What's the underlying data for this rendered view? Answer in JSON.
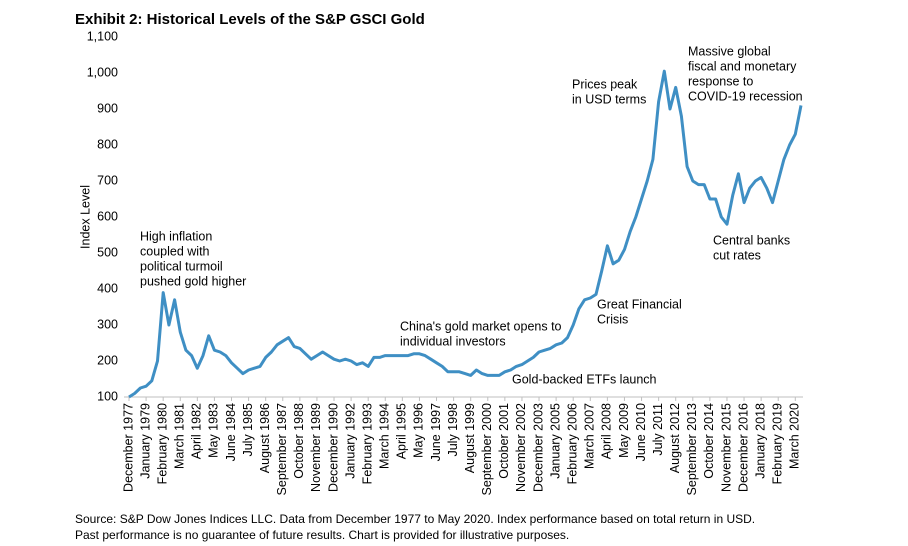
{
  "chart_data": {
    "type": "line",
    "title": "Exhibit 2: Historical Levels of the S&P GSCI Gold",
    "y_label": "Index Level",
    "source": [
      "Source: S&P Dow Jones Indices LLC. Data from December 1977 to May 2020. Index performance based on total return in USD.",
      "Past performance is no guarantee of future results. Chart is provided for illustrative purposes."
    ],
    "ylim": [
      100,
      1100
    ],
    "yticks": [
      100,
      200,
      300,
      400,
      500,
      600,
      700,
      800,
      900,
      {
        "value": 1000,
        "label": "1,000"
      },
      {
        "value": 1100,
        "label": "1,100"
      }
    ],
    "grid": false,
    "categories": [
      "December 1977",
      null,
      null,
      "January 1979",
      null,
      null,
      "February 1980",
      null,
      null,
      "March 1981",
      null,
      null,
      "April 1982",
      null,
      null,
      "May 1983",
      null,
      null,
      "June 1984",
      null,
      null,
      "July 1985",
      null,
      null,
      "August 1986",
      null,
      null,
      "September 1987",
      null,
      null,
      "October 1988",
      null,
      null,
      "November 1989",
      null,
      null,
      "December 1990",
      null,
      null,
      "January 1992",
      null,
      null,
      "February 1993",
      null,
      null,
      "March 1994",
      null,
      null,
      "April 1995",
      null,
      null,
      "May 1996",
      null,
      null,
      "June 1997",
      null,
      null,
      "July 1998",
      null,
      null,
      "August 1999",
      null,
      null,
      "September 2000",
      null,
      null,
      "October 2001",
      null,
      null,
      "November 2002",
      null,
      null,
      "December 2003",
      null,
      null,
      "January 2005",
      null,
      null,
      "February 2006",
      null,
      null,
      "March 2007",
      null,
      null,
      "April 2008",
      null,
      null,
      "May 2009",
      null,
      null,
      "June 2010",
      null,
      null,
      "July 2011",
      null,
      null,
      "August 2012",
      null,
      null,
      "September 2013",
      null,
      null,
      "October 2014",
      null,
      null,
      "November 2015",
      null,
      null,
      "December 2016",
      null,
      null,
      "January 2018",
      null,
      null,
      "February 2019",
      null,
      null,
      "March 2020",
      null
    ],
    "series": [
      {
        "name": "S&P GSCI Gold",
        "color": "#3f8fc4",
        "values": [
          100,
          110,
          125,
          130,
          145,
          200,
          390,
          300,
          370,
          280,
          230,
          215,
          180,
          215,
          270,
          230,
          225,
          215,
          195,
          180,
          165,
          175,
          180,
          185,
          210,
          225,
          245,
          255,
          265,
          240,
          235,
          220,
          205,
          215,
          225,
          215,
          205,
          200,
          205,
          200,
          190,
          195,
          185,
          210,
          210,
          215,
          215,
          215,
          215,
          215,
          220,
          220,
          215,
          205,
          195,
          185,
          170,
          170,
          170,
          165,
          160,
          175,
          165,
          160,
          160,
          160,
          170,
          175,
          185,
          190,
          200,
          210,
          225,
          230,
          235,
          245,
          250,
          265,
          300,
          345,
          370,
          375,
          385,
          450,
          520,
          470,
          480,
          510,
          560,
          600,
          650,
          700,
          760,
          920,
          1005,
          900,
          960,
          880,
          740,
          700,
          690,
          690,
          650,
          650,
          600,
          580,
          660,
          720,
          640,
          680,
          700,
          710,
          680,
          640,
          700,
          760,
          800,
          830,
          910
        ]
      }
    ],
    "annotations": [
      [
        "High inflation",
        "coupled with",
        "political turmoil",
        "pushed gold higher"
      ],
      [
        "China's gold market opens to",
        "individual investors"
      ],
      [
        "Gold-backed ETFs launch"
      ],
      [
        "Prices peak",
        "in USD terms"
      ],
      [
        "Massive global",
        "fiscal and monetary",
        "response to",
        "COVID-19 recession"
      ],
      [
        "Great Financial",
        "Crisis"
      ],
      [
        "Central banks",
        "cut rates"
      ]
    ]
  }
}
